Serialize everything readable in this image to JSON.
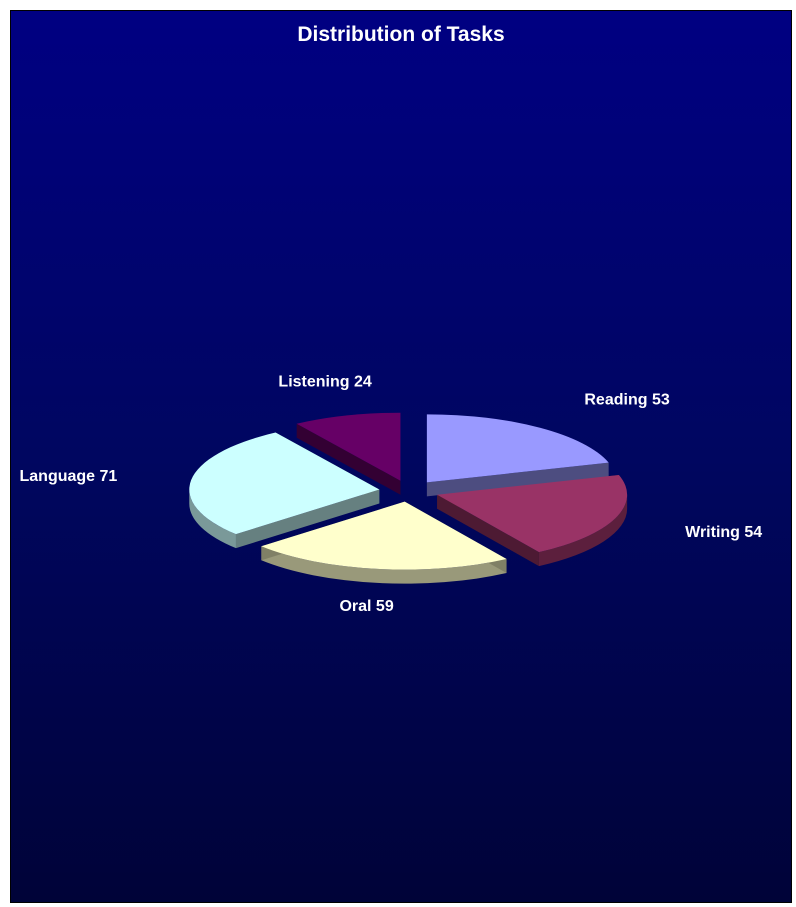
{
  "chart_data": {
    "type": "pie",
    "title": "Distribution of Tasks",
    "exploded": true,
    "three_d": true,
    "slices": [
      {
        "label": "Reading",
        "value": 53,
        "color": "#9999ff"
      },
      {
        "label": "Writing",
        "value": 54,
        "color": "#993366"
      },
      {
        "label": "Oral",
        "value": 59,
        "color": "#ffffcc"
      },
      {
        "label": "Language",
        "value": 71,
        "color": "#ccffff"
      },
      {
        "label": "Listening",
        "value": 24,
        "color": "#660066"
      }
    ]
  }
}
